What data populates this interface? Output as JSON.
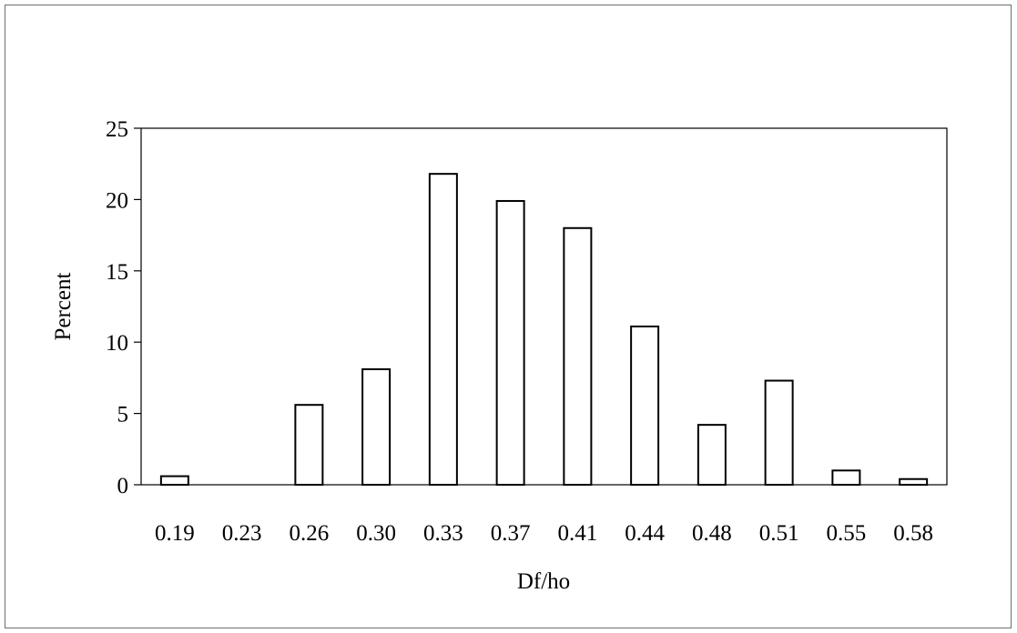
{
  "chart_data": {
    "type": "bar",
    "title": "",
    "xlabel": "Df/ho",
    "ylabel": "Percent",
    "categories": [
      "0.19",
      "0.23",
      "0.26",
      "0.30",
      "0.33",
      "0.37",
      "0.41",
      "0.44",
      "0.48",
      "0.51",
      "0.55",
      "0.58"
    ],
    "values": [
      0.6,
      0,
      5.6,
      8.1,
      21.8,
      19.9,
      18.0,
      11.1,
      4.2,
      7.3,
      1.0,
      0.4
    ],
    "ylim": [
      0,
      25
    ],
    "yticks": [
      0,
      5,
      10,
      15,
      20,
      25
    ],
    "grid": false,
    "legend": "none",
    "colors": {
      "bar_fill": "#ffffff",
      "bar_stroke": "#000000",
      "axis": "#000000"
    }
  }
}
